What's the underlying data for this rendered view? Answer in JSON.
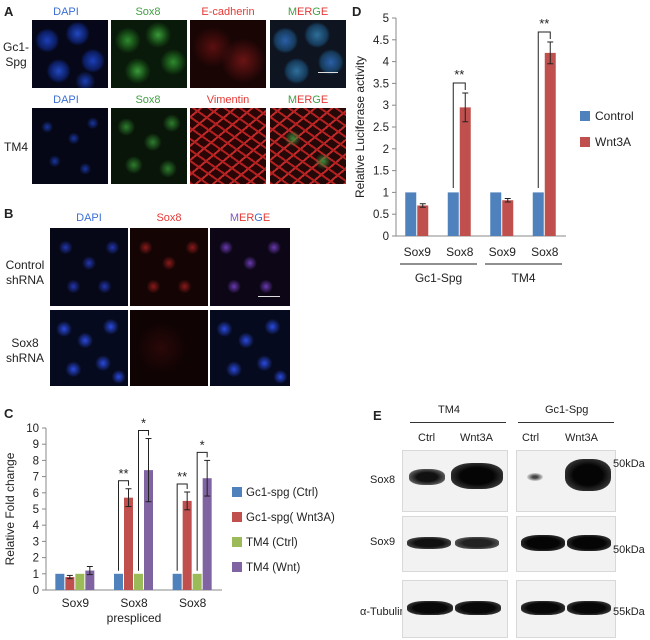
{
  "panel_a": {
    "letter": "A",
    "headers": [
      "DAPI",
      "Sox8",
      "E-cadherin",
      "Vimentin"
    ],
    "merge": {
      "m": "M",
      "e1": "E",
      "r": "R",
      "g": "G",
      "e2": "E"
    },
    "rows": [
      {
        "label1": "Gc1-",
        "label2": "Spg"
      },
      {
        "label1": "TM4",
        "label2": ""
      }
    ]
  },
  "panel_b": {
    "letter": "B",
    "headers": [
      "DAPI",
      "Sox8"
    ],
    "merge": {
      "m": "M",
      "e1": "E",
      "r": "R",
      "g": "G",
      "e2": "E"
    },
    "rows": [
      {
        "label1": "Control",
        "label2": "shRNA"
      },
      {
        "label1": "Sox8",
        "label2": "shRNA"
      }
    ]
  },
  "panel_e": {
    "letter": "E",
    "groups": [
      "TM4",
      "Gc1-Spg"
    ],
    "lanes": [
      "Ctrl",
      "Wnt3A",
      "Ctrl",
      "Wnt3A"
    ],
    "rows": [
      {
        "label": "Sox8",
        "size": "50kDa"
      },
      {
        "label": "Sox9",
        "size": "50kDa"
      },
      {
        "label": "α-Tubulin",
        "size": "55kDa"
      }
    ]
  },
  "colors": {
    "blue": "#4f81bd",
    "red": "#c0504d",
    "green": "#9bbb59",
    "purple": "#8064a2"
  },
  "chart_data": [
    {
      "panel": "D",
      "type": "bar",
      "ylabel": "Relative Luciferase activity",
      "ylim": [
        0,
        5
      ],
      "yticks": [
        0,
        0.5,
        1,
        1.5,
        2,
        2.5,
        3,
        3.5,
        4,
        4.5,
        5
      ],
      "categories": [
        "Sox9",
        "Sox8",
        "Sox9",
        "Sox8"
      ],
      "groups": [
        {
          "label": "Gc1-Spg"
        },
        {
          "label": "TM4"
        }
      ],
      "series": [
        {
          "name": "Control",
          "color": "#4f81bd",
          "values": [
            1.0,
            1.0,
            1.0,
            1.0
          ],
          "errors": [
            0,
            0,
            0,
            0
          ]
        },
        {
          "name": "Wnt3A",
          "color": "#c0504d",
          "values": [
            0.7,
            2.95,
            0.82,
            4.2
          ],
          "errors": [
            0.04,
            0.33,
            0.04,
            0.25
          ]
        }
      ],
      "significance": [
        {
          "category": 1,
          "label": "**"
        },
        {
          "category": 3,
          "label": "**"
        }
      ],
      "legend": "right"
    },
    {
      "panel": "C",
      "type": "bar",
      "ylabel": "Relative Fold change",
      "ylim": [
        0,
        10
      ],
      "yticks": [
        0,
        1,
        2,
        3,
        4,
        5,
        6,
        7,
        8,
        9,
        10
      ],
      "categories": [
        {
          "line1": "Sox9",
          "line2": ""
        },
        {
          "line1": "Sox8",
          "line2": "prespliced"
        },
        {
          "line1": "Sox8",
          "line2": ""
        }
      ],
      "series": [
        {
          "name": "Gc1-spg (Ctrl)",
          "color": "#4f81bd",
          "values": [
            1.0,
            1.0,
            1.0
          ],
          "errors": [
            0,
            0,
            0
          ]
        },
        {
          "name": "Gc1-spg( Wnt3A)",
          "color": "#c0504d",
          "values": [
            0.8,
            5.7,
            5.5
          ],
          "errors": [
            0.1,
            0.55,
            0.55
          ]
        },
        {
          "name": "TM4 (Ctrl)",
          "color": "#9bbb59",
          "values": [
            1.0,
            1.0,
            1.0
          ],
          "errors": [
            0,
            0,
            0
          ]
        },
        {
          "name": "TM4 (Wnt)",
          "color": "#8064a2",
          "values": [
            1.2,
            7.4,
            6.9
          ],
          "errors": [
            0.25,
            1.95,
            1.1
          ]
        }
      ],
      "significance": [
        {
          "category": 1,
          "from": 0,
          "to": 1,
          "label": "**"
        },
        {
          "category": 1,
          "from": 2,
          "to": 3,
          "label": "*"
        },
        {
          "category": 2,
          "from": 0,
          "to": 1,
          "label": "**"
        },
        {
          "category": 2,
          "from": 2,
          "to": 3,
          "label": "*"
        }
      ],
      "legend": "right"
    }
  ]
}
